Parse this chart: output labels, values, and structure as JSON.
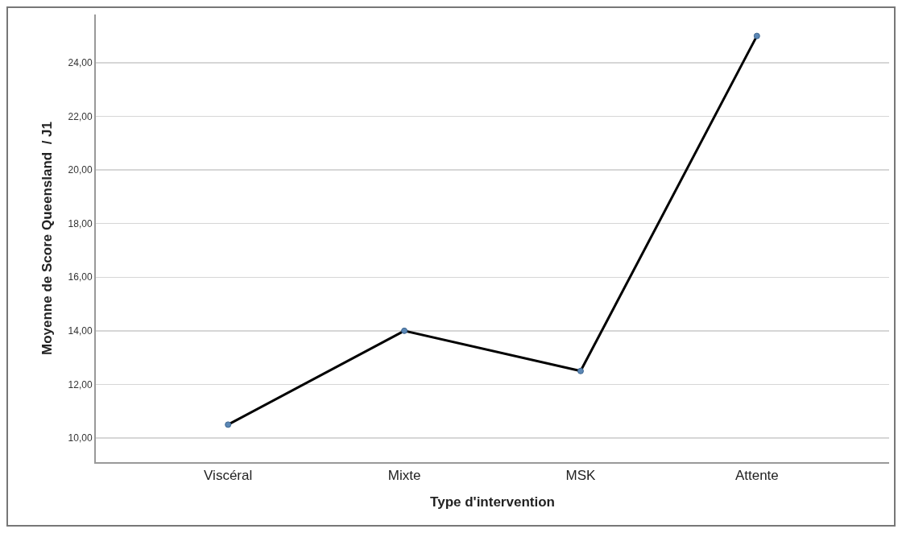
{
  "chart_data": {
    "type": "line",
    "xlabel": "Type d'intervention",
    "ylabel": "Moyenne de Score Queensland  / J1",
    "categories": [
      "Viscéral",
      "Mixte",
      "MSK",
      "Attente"
    ],
    "series": [
      {
        "color": "#000000",
        "values": [
          10.5,
          14.0,
          12.5,
          25.0
        ]
      }
    ],
    "ylim": [
      9.1,
      25.8
    ],
    "yticks": [
      {
        "value": 10,
        "label": "10,00"
      },
      {
        "value": 12,
        "label": "12,00"
      },
      {
        "value": 14,
        "label": "14,00"
      },
      {
        "value": 16,
        "label": "16,00"
      },
      {
        "value": 18,
        "label": "18,00"
      },
      {
        "value": 20,
        "label": "20,00"
      },
      {
        "value": 22,
        "label": "22,00"
      },
      {
        "value": 24,
        "label": "24,00"
      }
    ],
    "grid": "y",
    "marker": "circle",
    "line_style": "solid"
  }
}
